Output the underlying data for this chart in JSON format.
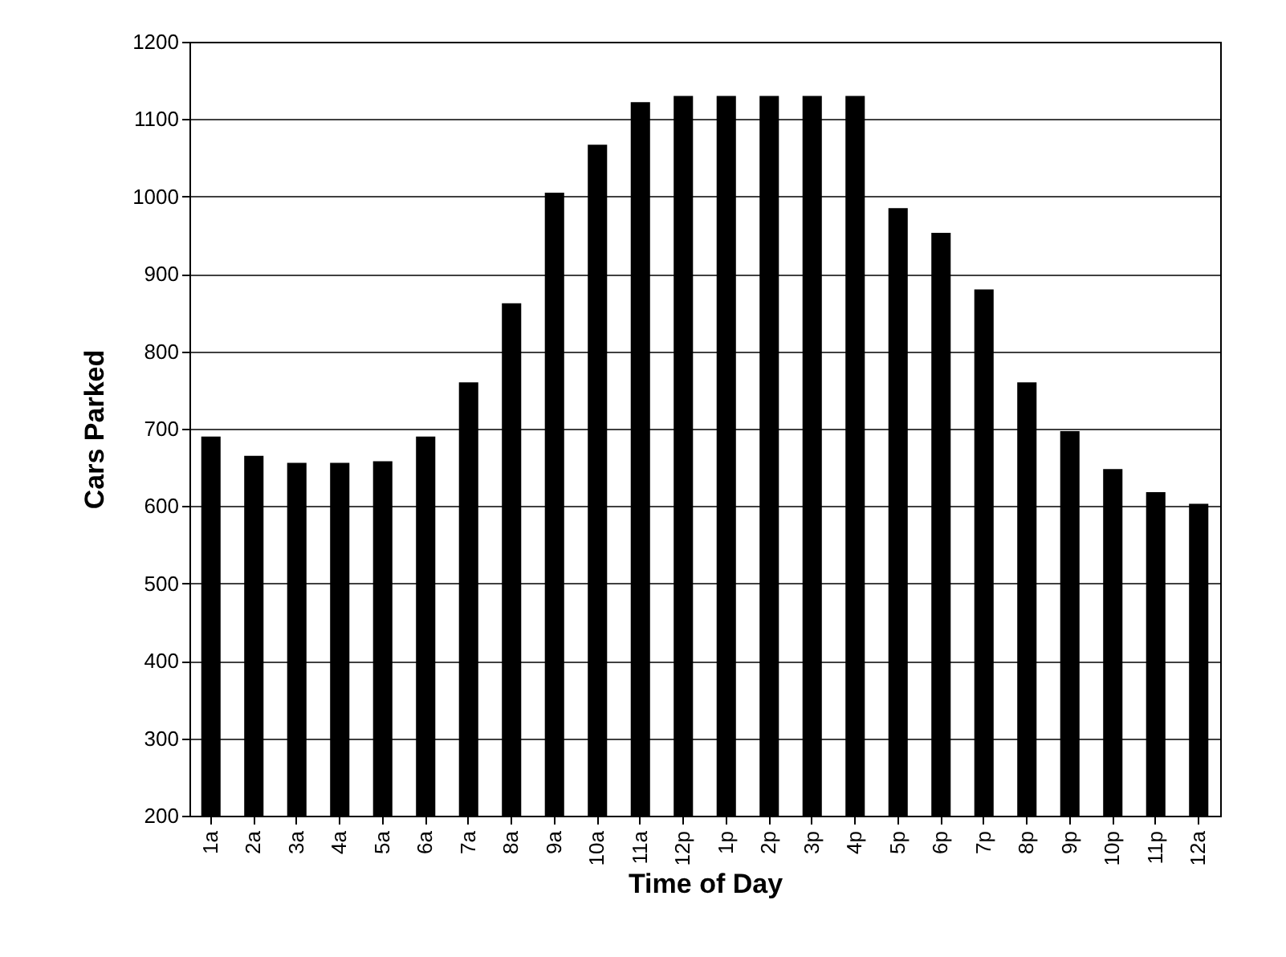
{
  "chart_data": {
    "type": "bar",
    "xlabel": "Time of Day",
    "ylabel": "Cars Parked",
    "categories": [
      "1a",
      "2a",
      "3a",
      "4a",
      "5a",
      "6a",
      "7a",
      "8a",
      "9a",
      "10a",
      "11a",
      "12p",
      "1p",
      "2p",
      "3p",
      "4p",
      "5p",
      "6p",
      "7p",
      "8p",
      "9p",
      "10p",
      "11p",
      "12a"
    ],
    "values": [
      690,
      665,
      656,
      656,
      658,
      690,
      760,
      862,
      1005,
      1067,
      1122,
      1130,
      1130,
      1130,
      1130,
      1130,
      985,
      953,
      880,
      760,
      697,
      648,
      618,
      603
    ],
    "color": "#000000",
    "ylim": [
      200,
      1200
    ],
    "yticks": [
      200,
      300,
      400,
      500,
      600,
      700,
      800,
      900,
      1000,
      1100,
      1200
    ],
    "grid": "y"
  }
}
